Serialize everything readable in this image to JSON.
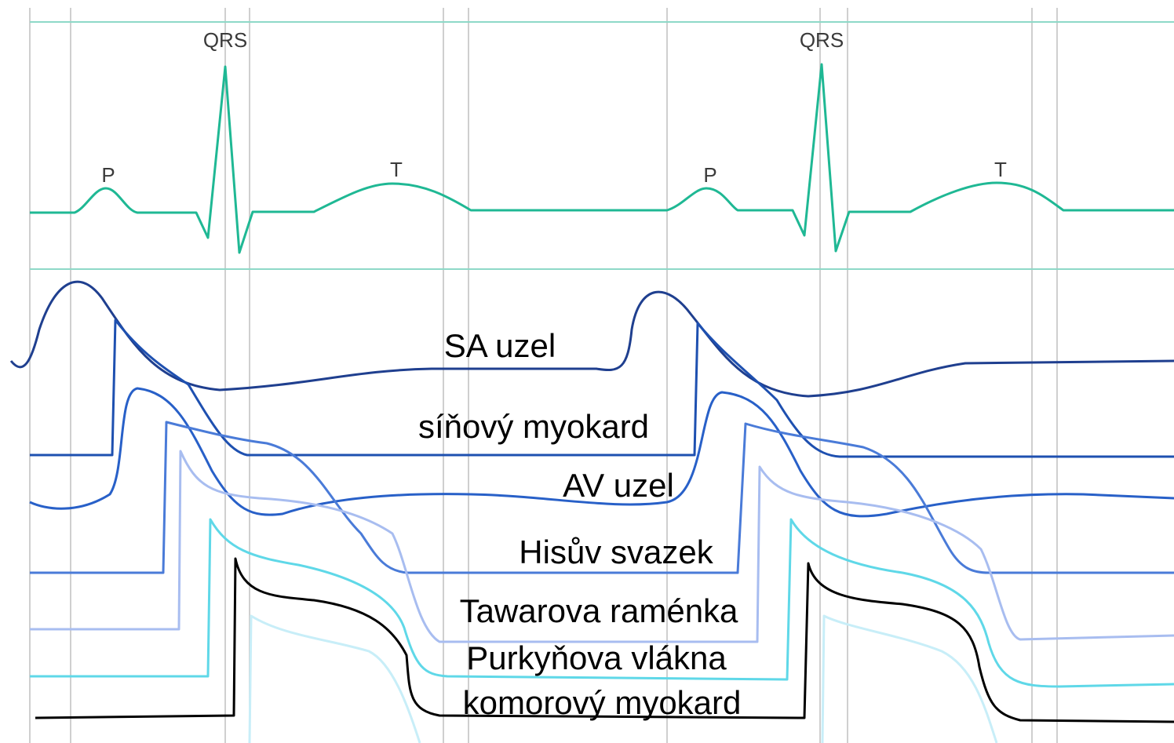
{
  "ecg": {
    "qrs_labels": [
      "QRS",
      "QRS"
    ],
    "p_labels": [
      "P",
      "P"
    ],
    "t_labels": [
      "T",
      "T"
    ]
  },
  "traces": [
    {
      "label": "SA uzel"
    },
    {
      "label": "síňový myokard"
    },
    {
      "label": "AV uzel"
    },
    {
      "label": "Hisův svazek"
    },
    {
      "label": "Tawarova raménka"
    },
    {
      "label": "Purkyňova vlákna"
    },
    {
      "label": "komorový myokard"
    }
  ]
}
